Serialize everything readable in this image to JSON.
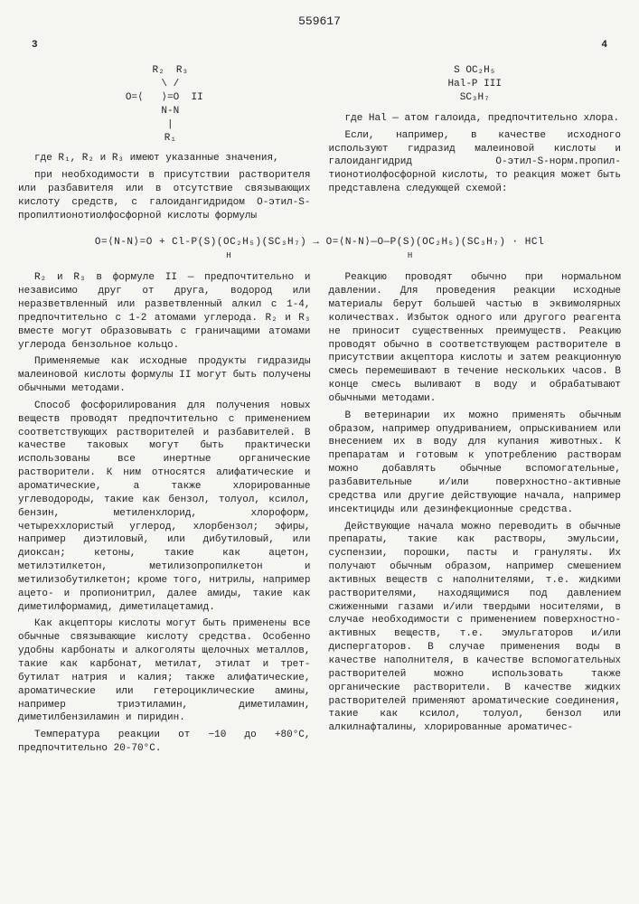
{
  "docNumber": "559617",
  "pageLeft": "3",
  "pageRight": "4",
  "formulaTop": {
    "left": "II",
    "rightStack": [
      "S  OC₂H₅",
      "Hal-P        III",
      "    SC₃H₇"
    ]
  },
  "leftCol": {
    "p1": "где R₁, R₂ и R₃ имеют указанные значения,",
    "p2": "при необходимости в присутствии растворителя или разбавителя или в отсутствие связывающих кислоту средств, с галоидангидридом O-этил-S-пропилтионотиолфосфорной кислоты формулы",
    "whereHal": "где Hal — атом галоида, предпочтительно хлора.",
    "p3": "Если, например, в качестве исходного используют гидразид малеиновой кислоты и галоидангидрид O-этил-S-норм.пропил-тионотиолфосфорной кислоты, то реакция может быть представлена следующей схемой:"
  },
  "midFormula": "O=⟨N-N⟩=O + Cl-P(S)(OC₂H₅)(SC₃H₇) → O=⟨N-N⟩—O—P(S)(OC₂H₅)(SC₃H₇) · HCl",
  "leftColBottom": {
    "p1": "R₂ и R₃ в формуле II — предпочтительно и независимо друг от друга, водород или неразветвленный или разветвленный алкил с 1-4, предпочтительно с 1-2 атомами углерода. R₂ и R₃ вместе могут образовывать с граничащими атомами углерода бензольное кольцо.",
    "p2": "Применяемые как исходные продукты гидразиды малеиновой кислоты формулы II могут быть получены обычными методами.",
    "p3": "Способ фосфорилирования для получения новых веществ проводят предпочтительно с применением соответствующих растворителей и разбавителей. В качестве таковых могут быть практически использованы все инертные органические растворители. К ним относятся алифатические и ароматические, а также хлорированные углеводороды, такие как бензол, толуол, ксилол, бензин, метиленхлорид, хлороформ, четыреххлористый углерод, хлорбензол; эфиры, например диэтиловый, или дибутиловый, или диоксан; кетоны, такие как ацетон, метилэтилкетон, метилизопропилкетон и метилизобутилкетон; кроме того, нитрилы, например ацето- и пропионитрил, далее амиды, такие как диметилформамид, диметилацетамид.",
    "p4": "Как акцепторы кислоты могут быть применены все обычные связывающие кислоту средства. Особенно удобны карбонаты и алкоголяты щелочных металлов, такие как карбонат, метилат, этилат и трет-бутилат натрия и калия; также алифатические, ароматические или гетероциклические амины, например триэтиламин, диметиламин, диметилбензиламин и пиридин.",
    "p5": "Температура реакции от −10 до +80°С, предпочтительно 20-70°С."
  },
  "rightColBottom": {
    "p1": "Реакцию проводят обычно при нормальном давлении. Для проведения реакции исходные материалы берут большей частью в эквимолярных количествах. Избыток одного или другого реагента не приносит существенных преимуществ. Реакцию проводят обычно в соответствующем растворителе в присутствии акцептора кислоты и затем реакционную смесь перемешивают в течение нескольких часов. В конце смесь выливают в воду и обрабатывают обычными методами.",
    "p2": "В ветеринарии их можно применять обычным образом, например опудриванием, опрыскиванием или внесением их в воду для купания животных. К препаратам и готовым к употреблению растворам можно добавлять обычные вспомогательные, разбавительные и/или поверхностно-активные средства или другие действующие начала, например инсектициды или дезинфекционные средства.",
    "p3": "Действующие начала можно переводить в обычные препараты, такие как растворы, эмульсии, суспензии, порошки, пасты и грануляты. Их получают обычным образом, например смешением активных веществ с наполнителями, т.е. жидкими растворителями, находящимися под давлением сжиженными газами и/или твердыми носителями, в случае необходимости с применением поверхностно-активных веществ, т.е. эмульгаторов и/или диспергаторов. В случае применения воды в качестве наполнителя, в качестве вспомогательных растворителей можно использовать также органические растворители. В качестве жидких растворителей применяют ароматические соединения, такие как ксилол, толуол, бензол или алкилнафталины, хлорированные ароматичес-"
  },
  "lineMarks": [
    "5",
    "10",
    "15",
    "20",
    "25",
    "30",
    "35",
    "40",
    "45",
    "50",
    "55",
    "60",
    "65"
  ],
  "colors": {
    "background": "#f5f5f2",
    "text": "#222222"
  },
  "typography": {
    "fontFamily": "Courier New",
    "fontSizePt": 8.5,
    "lineHeight": 1.35
  }
}
